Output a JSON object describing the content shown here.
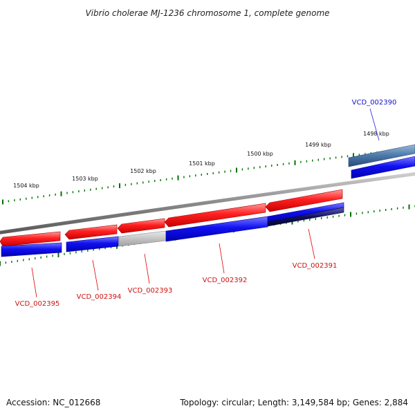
{
  "title": "Vibrio cholerae MJ-1236 chromosome 1, complete genome",
  "footer": {
    "accession": "Accession: NC_012668",
    "summary": "Topology: circular; Length: 3,149,584 bp; Genes: 2,884"
  },
  "scale_labels": [
    "1504 kbp",
    "1503 kbp",
    "1502 kbp",
    "1501 kbp",
    "1500 kbp",
    "1499 kbp",
    "1498 kbp"
  ],
  "genes": [
    {
      "label": "VCD_002390",
      "color": "#1010cc"
    },
    {
      "label": "VCD_002391",
      "color": "#cc1010"
    },
    {
      "label": "VCD_002392",
      "color": "#cc1010"
    },
    {
      "label": "VCD_002393",
      "color": "#cc1010"
    },
    {
      "label": "VCD_002394",
      "color": "#cc1010"
    },
    {
      "label": "VCD_002395",
      "color": "#cc1010"
    }
  ],
  "colors": {
    "forward_cds": "#e00000",
    "reverse_cds": "#0000e0",
    "backbone": "#808080",
    "ticks": "#007000",
    "grey_feature": "#b8b8b8",
    "steel_feature": "#4a78a8",
    "navy_feature": "#0a0a60"
  }
}
